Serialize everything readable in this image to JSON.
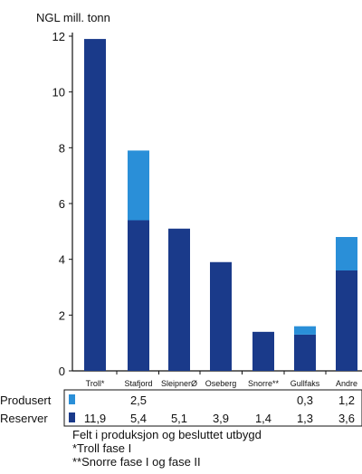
{
  "chart_data": {
    "type": "bar",
    "ylabel": "NGL mill. tonn",
    "ylim": [
      0,
      12
    ],
    "yticks": [
      0,
      2,
      4,
      6,
      8,
      10,
      12
    ],
    "categories": [
      "Troll*",
      "Stafjord",
      "SleipnerØ",
      "Oseberg",
      "Snorre**",
      "Gullfaks",
      "Andre"
    ],
    "stacked": true,
    "series": [
      {
        "name": "Reserver",
        "values": [
          11.9,
          5.4,
          5.1,
          3.9,
          1.4,
          1.3,
          3.6
        ],
        "labels": [
          "11,9",
          "5,4",
          "5,1",
          "3,9",
          "1,4",
          "1,3",
          "3,6"
        ],
        "color": "#1a3a8a"
      },
      {
        "name": "Produsert",
        "values": [
          0,
          2.5,
          0,
          0,
          0,
          0.3,
          1.2
        ],
        "labels": [
          "",
          "2,5",
          "",
          "",
          "",
          "0,3",
          "1,2"
        ],
        "color": "#2a8fd8"
      }
    ],
    "legend": "left-table"
  },
  "footnotes": [
    "Felt i produksjon og besluttet utbygd",
    "*Troll fase I",
    "**Snorre fase I og fase II"
  ]
}
